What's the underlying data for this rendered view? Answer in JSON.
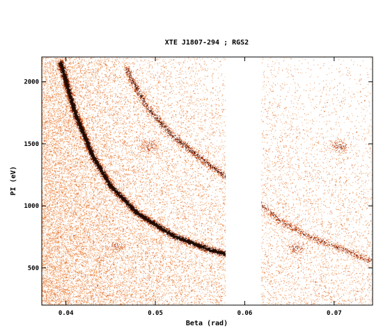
{
  "chart_data": {
    "type": "heatmap",
    "title": "XTE J1807-294 ; RGS2",
    "xlabel": "Beta (rad)",
    "ylabel": "PI (eV)",
    "xlim": [
      0.0373,
      0.0743
    ],
    "ylim": [
      200,
      2200
    ],
    "xticks": [
      {
        "value": 0.04,
        "label": "0.04"
      },
      {
        "value": 0.05,
        "label": "0.05"
      },
      {
        "value": 0.06,
        "label": "0.06"
      },
      {
        "value": 0.07,
        "label": "0.07"
      }
    ],
    "yticks": [
      {
        "value": 500,
        "label": "500"
      },
      {
        "value": 1000,
        "label": "1000"
      },
      {
        "value": 1500,
        "label": "1500"
      },
      {
        "value": 2000,
        "label": "2000"
      }
    ],
    "gaps": [
      {
        "x0": 0.0578,
        "x1": 0.0618
      }
    ],
    "colormap": [
      "#ffffff",
      "#f6b07a",
      "#e0591c",
      "#9b2d0c",
      "#1a0800"
    ],
    "features": [
      {
        "name": "first-order",
        "points": [
          [
            0.0394,
            2150
          ],
          [
            0.041,
            1750
          ],
          [
            0.043,
            1400
          ],
          [
            0.045,
            1160
          ],
          [
            0.048,
            940
          ],
          [
            0.052,
            760
          ],
          [
            0.056,
            650
          ],
          [
            0.058,
            610
          ]
        ],
        "strength": 1.0
      },
      {
        "name": "second-order",
        "points": [
          [
            0.0468,
            2100
          ],
          [
            0.049,
            1800
          ],
          [
            0.052,
            1560
          ],
          [
            0.0555,
            1360
          ],
          [
            0.0578,
            1240
          ]
        ],
        "strength": 0.6
      },
      {
        "name": "second-order-b",
        "points": [
          [
            0.0616,
            1020
          ],
          [
            0.064,
            880
          ],
          [
            0.067,
            760
          ],
          [
            0.071,
            650
          ],
          [
            0.074,
            560
          ]
        ],
        "strength": 0.45
      }
    ],
    "blobs": [
      {
        "x": 0.0493,
        "y": 1480,
        "strength": 0.55
      },
      {
        "x": 0.0707,
        "y": 1480,
        "strength": 0.75
      },
      {
        "x": 0.0658,
        "y": 660,
        "strength": 0.65
      },
      {
        "x": 0.0455,
        "y": 680,
        "strength": 0.4
      }
    ]
  }
}
